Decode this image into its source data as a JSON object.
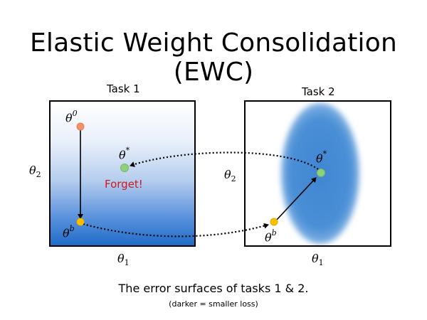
{
  "title": "Elastic Weight Consolidation (EWC)",
  "panels": {
    "task1": {
      "label": "Task 1"
    },
    "task2": {
      "label": "Task 2"
    }
  },
  "symbols": {
    "theta": "θ",
    "sup_zero": "0",
    "sup_b": "b",
    "sup_star": "*",
    "sub_one": "1",
    "sub_two": "2"
  },
  "forget_label": "Forget!",
  "caption": "The error surfaces of tasks 1 & 2.",
  "subcaption": "(darker = smaller loss)",
  "colors": {
    "theta0_point": "#f4936b",
    "thetab_point": "#ffc000",
    "thetastar_point": "#8fd07d",
    "surface_blue": "#1f6cc8",
    "forget_text": "#d0191c"
  }
}
